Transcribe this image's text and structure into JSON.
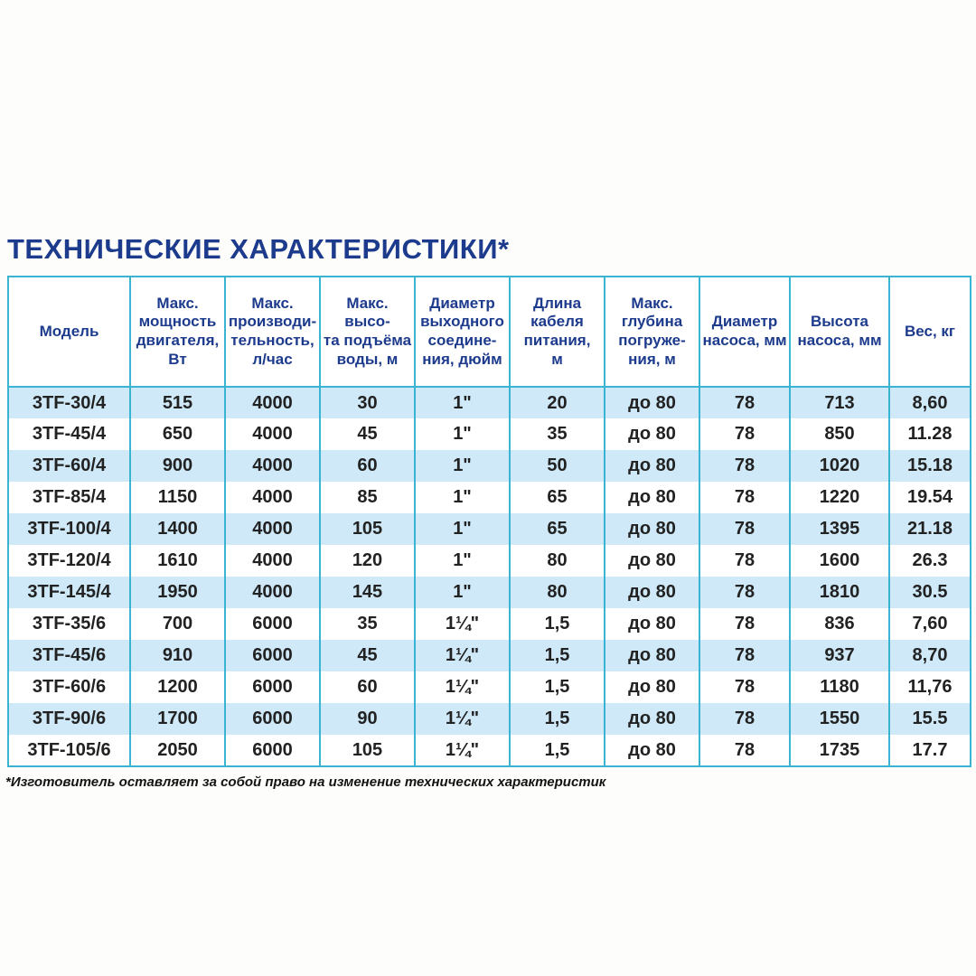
{
  "title": "ТЕХНИЧЕСКИЕ ХАРАКТЕРИСТИКИ*",
  "footnote": "*Изготовитель оставляет за собой право на изменение технических характеристик",
  "colors": {
    "border_teal": "#3ab4d2",
    "row_stripe_blue": "#cfe9f8",
    "heading_navy": "#1d3b8d",
    "body_text": "#222222"
  },
  "table": {
    "headers": [
      "Модель",
      "Макс.\nмощность\nдвигателя,\nВт",
      "Макс.\nпроизводи-\nтельность,\nл/час",
      "Макс. высо-\nта подъёма\nводы, м",
      "Диаметр\nвыходного\nсоедине-\nния, дюйм",
      "Длина\nкабеля\nпитания,\nм",
      "Макс.\nглубина\nпогруже-\nния, м",
      "Диаметр\nнасоса, мм",
      "Высота\nнасоса, мм",
      "Вес, кг"
    ],
    "rows": [
      [
        "3TF-30/4",
        "515",
        "4000",
        "30",
        "1\"",
        "20",
        "до 80",
        "78",
        "713",
        "8,60"
      ],
      [
        "3TF-45/4",
        "650",
        "4000",
        "45",
        "1\"",
        "35",
        "до 80",
        "78",
        "850",
        "11.28"
      ],
      [
        "3TF-60/4",
        "900",
        "4000",
        "60",
        "1\"",
        "50",
        "до 80",
        "78",
        "1020",
        "15.18"
      ],
      [
        "3TF-85/4",
        "1150",
        "4000",
        "85",
        "1\"",
        "65",
        "до 80",
        "78",
        "1220",
        "19.54"
      ],
      [
        "3TF-100/4",
        "1400",
        "4000",
        "105",
        "1\"",
        "65",
        "до 80",
        "78",
        "1395",
        "21.18"
      ],
      [
        "3TF-120/4",
        "1610",
        "4000",
        "120",
        "1\"",
        "80",
        "до 80",
        "78",
        "1600",
        "26.3"
      ],
      [
        "3TF-145/4",
        "1950",
        "4000",
        "145",
        "1\"",
        "80",
        "до 80",
        "78",
        "1810",
        "30.5"
      ],
      [
        "3TF-35/6",
        "700",
        "6000",
        "35",
        "1¼\"",
        "1,5",
        "до 80",
        "78",
        "836",
        "7,60"
      ],
      [
        "3TF-45/6",
        "910",
        "6000",
        "45",
        "1¼\"",
        "1,5",
        "до 80",
        "78",
        "937",
        "8,70"
      ],
      [
        "3TF-60/6",
        "1200",
        "6000",
        "60",
        "1¼\"",
        "1,5",
        "до 80",
        "78",
        "1180",
        "11,76"
      ],
      [
        "3TF-90/6",
        "1700",
        "6000",
        "90",
        "1¼\"",
        "1,5",
        "до 80",
        "78",
        "1550",
        "15.5"
      ],
      [
        "3TF-105/6",
        "2050",
        "6000",
        "105",
        "1¼\"",
        "1,5",
        "до 80",
        "78",
        "1735",
        "17.7"
      ]
    ]
  }
}
